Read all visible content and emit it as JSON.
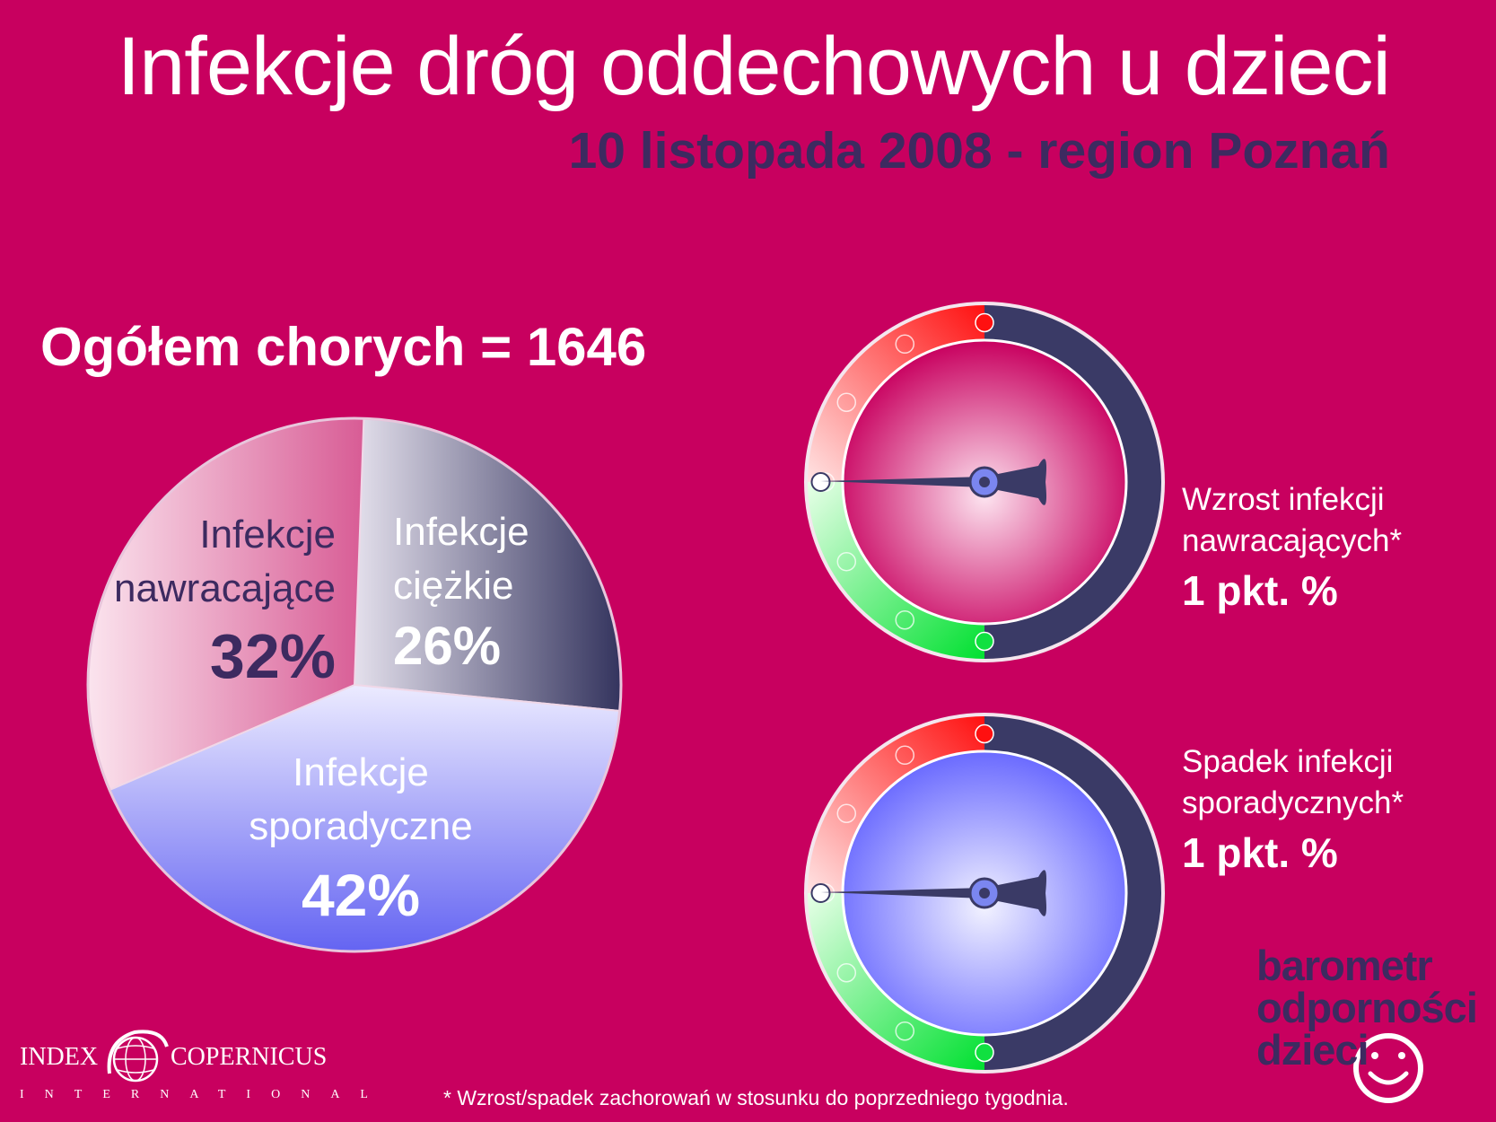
{
  "title": "Infekcje dróg oddechowych u dzieci",
  "subtitle": "10 listopada 2008 - region Poznań",
  "total_label": "Ogółem chorych = 1646",
  "chart_data": [
    {
      "type": "pie",
      "title": "",
      "slices": [
        {
          "label_line1": "Infekcje",
          "label_line2": "ciężkie",
          "value": 26,
          "pct_text": "26%",
          "color": "#3a3a68"
        },
        {
          "label_line1": "Infekcje",
          "label_line2": "sporadyczne",
          "value": 42,
          "pct_text": "42%",
          "color": "#7f7ff0"
        },
        {
          "label_line1": "Infekcje",
          "label_line2": "nawracające",
          "value": 32,
          "pct_text": "32%",
          "color": "#e07aa8"
        }
      ]
    }
  ],
  "gauges": [
    {
      "line1": "Wzrost infekcji",
      "line2": "nawracających*",
      "value_text": "1 pkt. %",
      "center_color": "#c8005f"
    },
    {
      "line1": "Spadek infekcji",
      "line2": "sporadycznych*",
      "value_text": "1 pkt. %",
      "center_color": "#7070ff"
    }
  ],
  "logo": {
    "line1": "barometr",
    "line2": "odporności",
    "line3": "dzieci"
  },
  "publisher": {
    "left": "INDEX",
    "right": "COPERNICUS",
    "sub": "INTERNATIONAL"
  },
  "footnote": "* Wzrost/spadek zachorowań w stosunku do poprzedniego tygodnia.",
  "colors": {
    "background": "#c8005f",
    "dark": "#3d2a60",
    "red_zone": "#ff2020",
    "green_zone": "#10e040"
  }
}
